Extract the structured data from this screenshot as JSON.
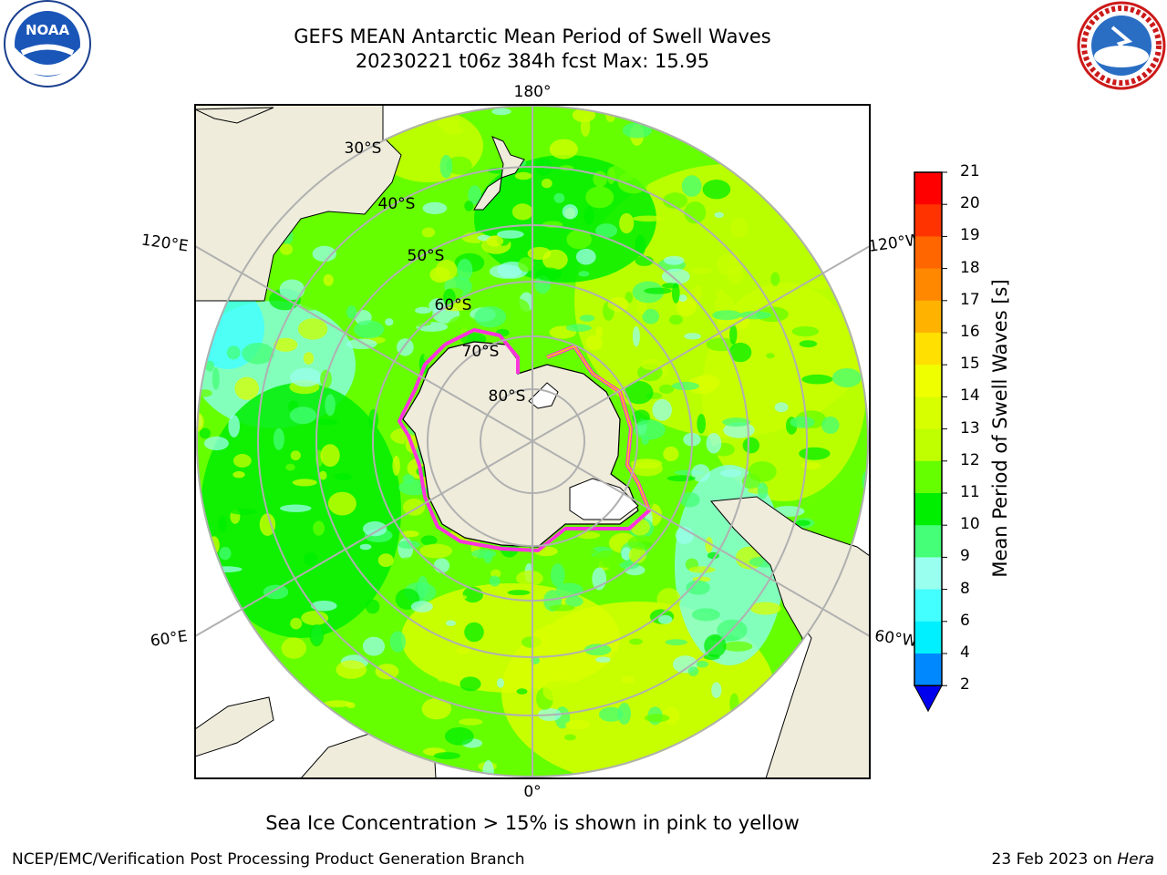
{
  "header": {
    "title_line1": "GEFS MEAN Antarctic Mean Period of Swell Waves",
    "title_line2": "20230221 t06z 384h fcst   Max: 15.95",
    "left_logo": "NOAA",
    "left_logo_ring_text": "NATIONAL OCEANIC AND ATMOSPHERIC ADMINISTRATION · U.S. DEPARTMENT OF COMMERCE",
    "right_logo_ring_text": "NATIONAL WEATHER SERVICE"
  },
  "map": {
    "projection": "south-polar-stereographic",
    "longitude_labels": [
      "180°",
      "120°E",
      "120°W",
      "60°E",
      "60°W",
      "0°"
    ],
    "latitude_labels": [
      "30°S",
      "40°S",
      "50°S",
      "60°S",
      "70°S",
      "80°S"
    ],
    "colors": {
      "land": "#efecdc",
      "grid": "#b0b0b0",
      "sea_ice": "#ff33dd"
    }
  },
  "colorbar": {
    "label": "Mean Period of Swell Waves [s]",
    "ticks": [
      "21",
      "20",
      "19",
      "18",
      "17",
      "16",
      "15",
      "14",
      "13",
      "12",
      "11",
      "10",
      "9",
      "8",
      "6",
      "4",
      "2"
    ],
    "colors": [
      "#ff0000",
      "#ff3300",
      "#ff6600",
      "#ff8800",
      "#ffb300",
      "#ffe000",
      "#f0ff00",
      "#d8ff00",
      "#c0ff00",
      "#66ff00",
      "#00ee00",
      "#44ff77",
      "#99ffee",
      "#44ffff",
      "#00f0ff",
      "#0088ff"
    ],
    "extend_color": "#0000ee"
  },
  "caption": "Sea Ice Concentration > 15% is shown in pink to yellow",
  "footer": {
    "left": "NCEP/EMC/Verification Post Processing Product Generation Branch",
    "right_date": "23 Feb 2023 on ",
    "right_host": "Hera"
  }
}
